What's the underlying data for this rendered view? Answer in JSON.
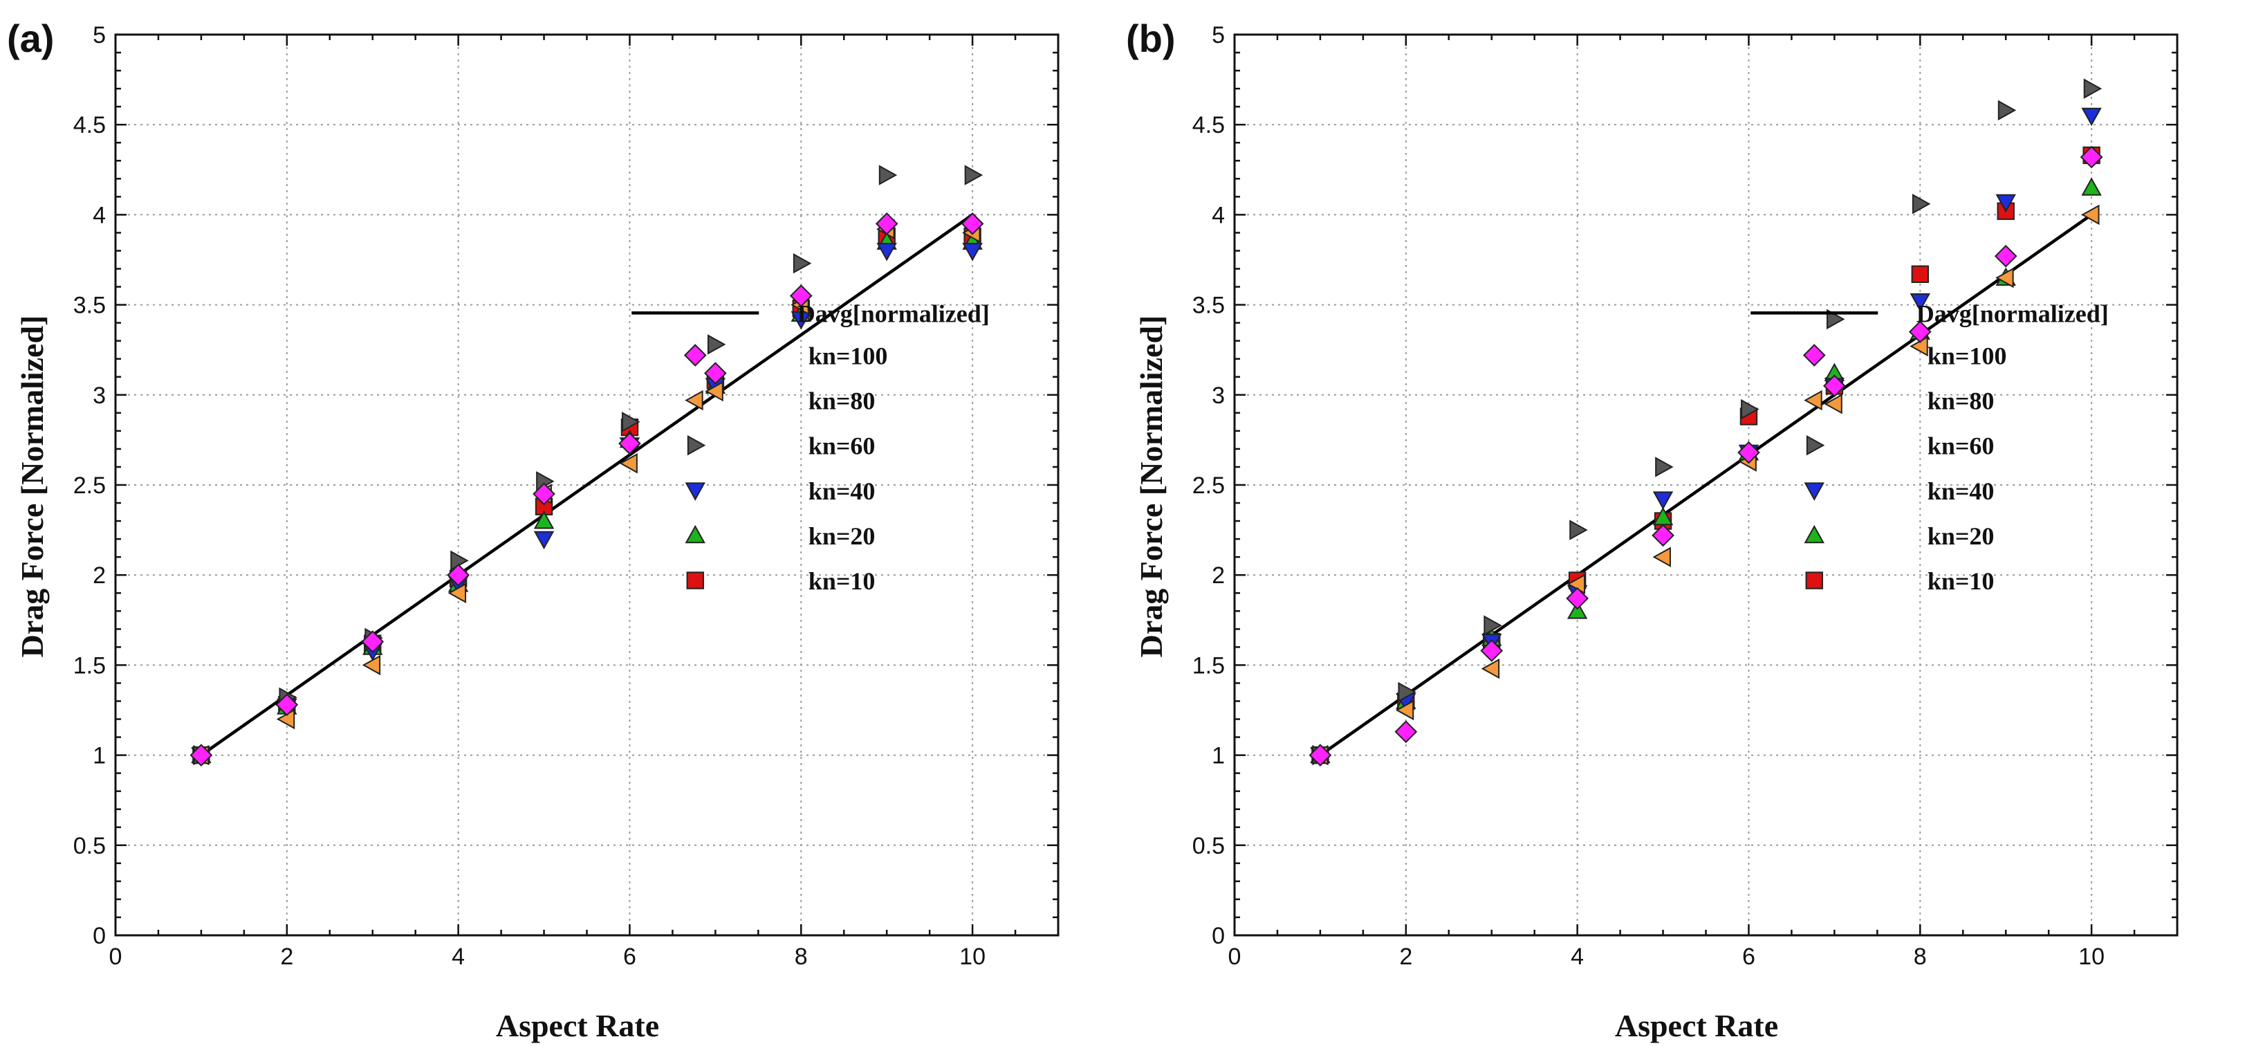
{
  "chart_data": [
    {
      "panel_label": "(a)",
      "type": "scatter",
      "xlabel": "Aspect Rate",
      "ylabel": "Drag Force [Normalized]",
      "xlim": [
        0,
        11
      ],
      "ylim": [
        0,
        5
      ],
      "xticks": [
        0,
        2,
        4,
        6,
        8,
        10
      ],
      "yticks": [
        0,
        0.5,
        1,
        1.5,
        2,
        2.5,
        3,
        3.5,
        4,
        4.5,
        5
      ],
      "ytick_labels": [
        "0",
        "0.5",
        "1",
        "1.5",
        "2",
        "2.5",
        "3",
        "3.5",
        "4",
        "4.5",
        "5"
      ],
      "grid": true,
      "legend_position": "bottom-right",
      "x": [
        1,
        2,
        3,
        4,
        5,
        6,
        7,
        8,
        9,
        10
      ],
      "series": [
        {
          "name": "kn=10",
          "marker": "square",
          "color": "#dd1111",
          "values": [
            1.0,
            1.28,
            1.62,
            1.98,
            2.38,
            2.82,
            3.08,
            3.48,
            3.88,
            3.88
          ]
        },
        {
          "name": "kn=20",
          "marker": "triangle-up",
          "color": "#1db31d",
          "values": [
            1.0,
            1.27,
            1.6,
            1.95,
            2.3,
            2.75,
            3.05,
            3.45,
            3.85,
            3.85
          ]
        },
        {
          "name": "kn=40",
          "marker": "triangle-down",
          "color": "#1c2ed8",
          "values": [
            1.0,
            1.27,
            1.58,
            1.95,
            2.2,
            2.72,
            3.05,
            3.42,
            3.8,
            3.8
          ]
        },
        {
          "name": "kn=60",
          "marker": "triangle-right",
          "color": "#555555",
          "values": [
            1.0,
            1.32,
            1.65,
            2.08,
            2.52,
            2.85,
            3.28,
            3.73,
            4.22,
            4.22
          ]
        },
        {
          "name": "kn=80",
          "marker": "triangle-left",
          "color": "#f59a3c",
          "values": [
            1.0,
            1.2,
            1.5,
            1.9,
            2.45,
            2.62,
            3.02,
            3.5,
            3.92,
            3.9
          ]
        },
        {
          "name": "kn=100",
          "marker": "diamond",
          "color": "#ff22ff",
          "values": [
            1.0,
            1.28,
            1.63,
            2.0,
            2.45,
            2.73,
            3.12,
            3.55,
            3.95,
            3.95
          ]
        }
      ],
      "fit_line": {
        "name": "Davg[normalized]",
        "x": [
          1,
          10
        ],
        "y": [
          1.0,
          4.0
        ]
      }
    },
    {
      "panel_label": "(b)",
      "type": "scatter",
      "xlabel": "Aspect Rate",
      "ylabel": "Drag Force [Normalized]",
      "xlim": [
        0,
        11
      ],
      "ylim": [
        0,
        5
      ],
      "xticks": [
        0,
        2,
        4,
        6,
        8,
        10
      ],
      "yticks": [
        0,
        0.5,
        1,
        1.5,
        2,
        2.5,
        3,
        3.5,
        4,
        4.5,
        5
      ],
      "ytick_labels": [
        "0",
        "0.5",
        "1",
        "1.5",
        "2",
        "2.5",
        "3",
        "3.5",
        "4",
        "4.5",
        "5"
      ],
      "grid": true,
      "legend_position": "bottom-right",
      "x": [
        1,
        2,
        3,
        4,
        5,
        6,
        7,
        8,
        9,
        10
      ],
      "series": [
        {
          "name": "kn=10",
          "marker": "square",
          "color": "#dd1111",
          "values": [
            1.0,
            1.3,
            1.63,
            1.97,
            2.3,
            2.88,
            3.05,
            3.67,
            4.02,
            4.33
          ]
        },
        {
          "name": "kn=20",
          "marker": "triangle-up",
          "color": "#1db31d",
          "values": [
            1.0,
            1.3,
            1.65,
            1.8,
            2.32,
            2.68,
            3.12,
            3.35,
            3.65,
            4.15
          ]
        },
        {
          "name": "kn=40",
          "marker": "triangle-down",
          "color": "#1c2ed8",
          "values": [
            1.0,
            1.3,
            1.63,
            1.9,
            2.42,
            2.68,
            3.05,
            3.52,
            4.07,
            4.55
          ]
        },
        {
          "name": "kn=60",
          "marker": "triangle-right",
          "color": "#555555",
          "values": [
            1.0,
            1.35,
            1.72,
            2.25,
            2.6,
            2.92,
            3.42,
            4.06,
            4.58,
            4.7
          ]
        },
        {
          "name": "kn=80",
          "marker": "triangle-left",
          "color": "#f59a3c",
          "values": [
            1.0,
            1.25,
            1.48,
            1.95,
            2.1,
            2.63,
            2.95,
            3.27,
            3.65,
            4.0
          ]
        },
        {
          "name": "kn=100",
          "marker": "diamond",
          "color": "#ff22ff",
          "values": [
            1.0,
            1.13,
            1.58,
            1.87,
            2.22,
            2.68,
            3.05,
            3.35,
            3.77,
            4.32
          ]
        }
      ],
      "fit_line": {
        "name": "Davg[normalized]",
        "x": [
          1,
          10
        ],
        "y": [
          1.0,
          4.0
        ]
      }
    }
  ]
}
